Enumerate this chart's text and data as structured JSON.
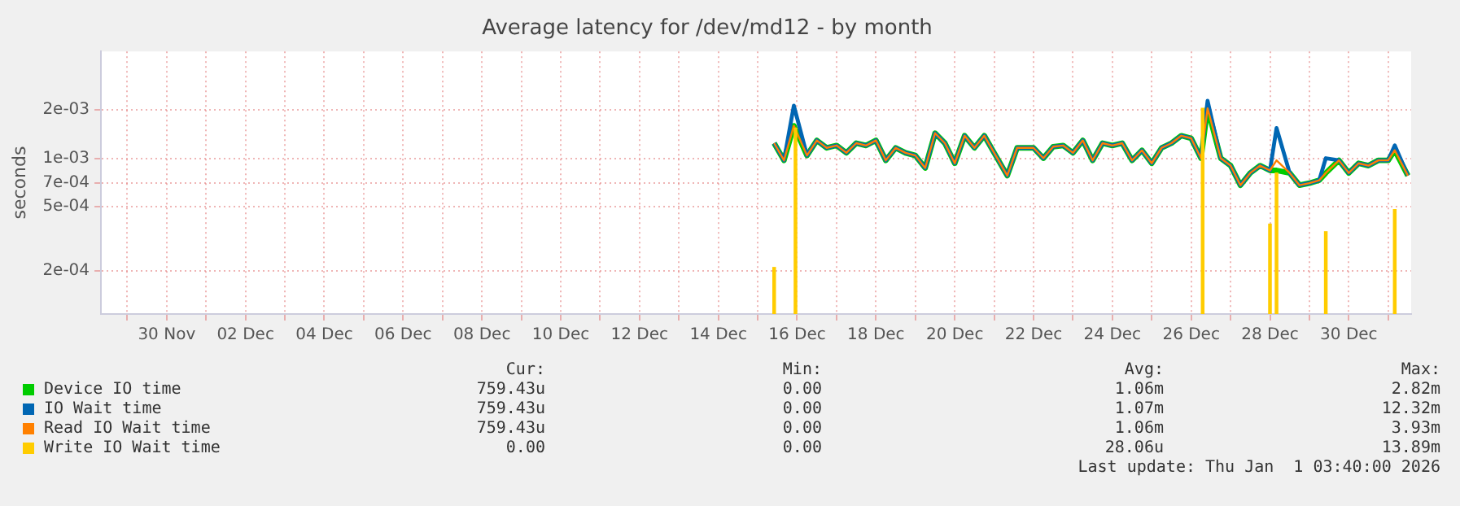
{
  "chart_data": {
    "type": "line",
    "title": "Average latency for /dev/md12 - by month",
    "ylabel": "seconds",
    "log": true,
    "grid": true,
    "legend": "bottom",
    "ylim": [
      0.000108,
      0.0046
    ],
    "yticks": [
      {
        "value": 0.0002,
        "label": "2e-04"
      },
      {
        "value": 0.0005,
        "label": "5e-04"
      },
      {
        "value": 0.0007,
        "label": "7e-04"
      },
      {
        "value": 0.001,
        "label": "1e-03"
      },
      {
        "value": 0.002,
        "label": "2e-03"
      }
    ],
    "xlim": [
      "--11-28T08:00",
      "--12-31T14:00"
    ],
    "xticks": [
      {
        "value": "--11-29",
        "label": null
      },
      {
        "value": "--11-30",
        "label": "30 Nov"
      },
      {
        "value": "--12-01",
        "label": null
      },
      {
        "value": "--12-02",
        "label": "02 Dec"
      },
      {
        "value": "--12-03",
        "label": null
      },
      {
        "value": "--12-04",
        "label": "04 Dec"
      },
      {
        "value": "--12-05",
        "label": null
      },
      {
        "value": "--12-06",
        "label": "06 Dec"
      },
      {
        "value": "--12-07",
        "label": null
      },
      {
        "value": "--12-08",
        "label": "08 Dec"
      },
      {
        "value": "--12-09",
        "label": null
      },
      {
        "value": "--12-10",
        "label": "10 Dec"
      },
      {
        "value": "--12-11",
        "label": null
      },
      {
        "value": "--12-12",
        "label": "12 Dec"
      },
      {
        "value": "--12-13",
        "label": null
      },
      {
        "value": "--12-14",
        "label": "14 Dec"
      },
      {
        "value": "--12-15",
        "label": null
      },
      {
        "value": "--12-16",
        "label": "16 Dec"
      },
      {
        "value": "--12-17",
        "label": null
      },
      {
        "value": "--12-18",
        "label": "18 Dec"
      },
      {
        "value": "--12-19",
        "label": null
      },
      {
        "value": "--12-20",
        "label": "20 Dec"
      },
      {
        "value": "--12-21",
        "label": null
      },
      {
        "value": "--12-22",
        "label": "22 Dec"
      },
      {
        "value": "--12-23",
        "label": null
      },
      {
        "value": "--12-24",
        "label": "24 Dec"
      },
      {
        "value": "--12-25",
        "label": null
      },
      {
        "value": "--12-26",
        "label": "26 Dec"
      },
      {
        "value": "--12-27",
        "label": null
      },
      {
        "value": "--12-28",
        "label": "28 Dec"
      },
      {
        "value": "--12-29",
        "label": null
      },
      {
        "value": "--12-30",
        "label": "30 Dec"
      },
      {
        "value": "--12-31",
        "label": null
      }
    ],
    "x": [
      "--12-15T10:00",
      "--12-15T16:00",
      "--12-15T22:00",
      "--12-16T06:00",
      "--12-16T12:00",
      "--12-16T18:00",
      "--12-17T00:00",
      "--12-17T06:00",
      "--12-17T12:00",
      "--12-17T18:00",
      "--12-18T00:00",
      "--12-18T06:00",
      "--12-18T12:00",
      "--12-18T18:00",
      "--12-19T00:00",
      "--12-19T06:00",
      "--12-19T12:00",
      "--12-19T18:00",
      "--12-20T00:00",
      "--12-20T06:00",
      "--12-20T12:00",
      "--12-20T18:00",
      "--12-21T00:00",
      "--12-21T08:00",
      "--12-21T14:00",
      "--12-22T00:00",
      "--12-22T06:00",
      "--12-22T12:00",
      "--12-22T18:00",
      "--12-23T00:00",
      "--12-23T06:00",
      "--12-23T12:00",
      "--12-23T18:00",
      "--12-24T00:00",
      "--12-24T06:00",
      "--12-24T12:00",
      "--12-24T18:00",
      "--12-25T00:00",
      "--12-25T06:00",
      "--12-25T12:00",
      "--12-25T18:00",
      "--12-26T00:00",
      "--12-26T06:00",
      "--12-26T10:00",
      "--12-26T18:00",
      "--12-27T00:00",
      "--12-27T06:00",
      "--12-27T12:00",
      "--12-27T18:00",
      "--12-28T00:00",
      "--12-28T04:00",
      "--12-28T12:00",
      "--12-28T18:00",
      "--12-29T00:00",
      "--12-29T06:00",
      "--12-29T10:00",
      "--12-29T18:00",
      "--12-30T00:00",
      "--12-30T06:00",
      "--12-30T12:00",
      "--12-30T18:00",
      "--12-31T00:00",
      "--12-31T04:00",
      "--12-31T12:00"
    ],
    "series": [
      {
        "name": "Device IO time",
        "color": "#00cc00",
        "values": [
          0.00124,
          0.00097,
          0.00159,
          0.00104,
          0.00129,
          0.00116,
          0.0012,
          0.00108,
          0.00124,
          0.0012,
          0.00129,
          0.00097,
          0.00116,
          0.00108,
          0.00104,
          0.00087,
          0.00143,
          0.00124,
          0.00093,
          0.00138,
          0.00116,
          0.00138,
          0.00108,
          0.00078,
          0.00116,
          0.00116,
          0.001,
          0.00118,
          0.0012,
          0.00108,
          0.00129,
          0.00097,
          0.00124,
          0.0012,
          0.00124,
          0.00097,
          0.00112,
          0.00093,
          0.00116,
          0.00124,
          0.00138,
          0.00133,
          0.001,
          0.00204,
          0.001,
          0.0009,
          0.00068,
          0.00081,
          0.0009,
          0.00084,
          0.00084,
          0.00081,
          0.00068,
          0.0007,
          0.00073,
          0.00081,
          0.00097,
          0.00081,
          0.00093,
          0.0009,
          0.00097,
          0.00097,
          0.00112,
          0.00078
        ]
      },
      {
        "name": "IO Wait time",
        "color": "#0066b3",
        "values": [
          0.00124,
          0.00097,
          0.00212,
          0.00104,
          0.00129,
          0.00116,
          0.0012,
          0.00108,
          0.00124,
          0.0012,
          0.00129,
          0.00097,
          0.00116,
          0.00108,
          0.00104,
          0.00087,
          0.00143,
          0.00124,
          0.00093,
          0.00138,
          0.00116,
          0.00138,
          0.00108,
          0.00078,
          0.00116,
          0.00116,
          0.001,
          0.00118,
          0.0012,
          0.00108,
          0.00129,
          0.00097,
          0.00124,
          0.0012,
          0.00124,
          0.00097,
          0.00112,
          0.00093,
          0.00116,
          0.00124,
          0.00138,
          0.00133,
          0.001,
          0.00227,
          0.001,
          0.0009,
          0.00068,
          0.00081,
          0.0009,
          0.00084,
          0.00154,
          0.00081,
          0.00068,
          0.0007,
          0.00073,
          0.001,
          0.00097,
          0.00081,
          0.00093,
          0.0009,
          0.00097,
          0.00097,
          0.0012,
          0.00078
        ]
      },
      {
        "name": "Read IO Wait time",
        "color": "#ff8000",
        "values": [
          0.00124,
          0.00097,
          0.00159,
          0.00104,
          0.00129,
          0.00116,
          0.0012,
          0.00108,
          0.00124,
          0.0012,
          0.00129,
          0.00097,
          0.00116,
          0.00108,
          0.00104,
          0.00087,
          0.00143,
          0.00124,
          0.00093,
          0.00138,
          0.00116,
          0.00138,
          0.00108,
          0.00078,
          0.00116,
          0.00116,
          0.001,
          0.00118,
          0.0012,
          0.00108,
          0.00129,
          0.00097,
          0.00124,
          0.0012,
          0.00124,
          0.00097,
          0.00112,
          0.00093,
          0.00116,
          0.00124,
          0.00138,
          0.00133,
          0.001,
          0.00204,
          0.001,
          0.0009,
          0.00068,
          0.00081,
          0.0009,
          0.00084,
          0.00097,
          0.00081,
          0.00068,
          0.0007,
          0.00073,
          0.00081,
          0.00097,
          0.00081,
          0.00093,
          0.0009,
          0.00097,
          0.00097,
          0.00112,
          0.00078
        ]
      },
      {
        "name": "Write IO Wait time",
        "type": "bar",
        "color": "#ffcc00",
        "x": [
          "--12-15T10:00",
          "--12-15T23:00",
          "--12-26T07:00",
          "--12-28T00:00",
          "--12-28T04:00",
          "--12-29T10:00",
          "--12-31T04:00"
        ],
        "values": [
          0.00021,
          0.00154,
          0.00204,
          0.00039,
          0.00081,
          0.00035,
          0.00048
        ]
      }
    ],
    "annotations": [
      "Cur:",
      "Min:",
      "Avg:",
      "Max:",
      "759.43u",
      "0.00",
      "1.06m",
      "2.82m",
      "759.43u",
      "0.00",
      "1.07m",
      "12.32m",
      "759.43u",
      "0.00",
      "1.06m",
      "3.93m",
      "0.00",
      "0.00",
      "28.06u",
      "13.89m",
      "Last update: Thu Jan  1 03:40:00 2026"
    ]
  }
}
